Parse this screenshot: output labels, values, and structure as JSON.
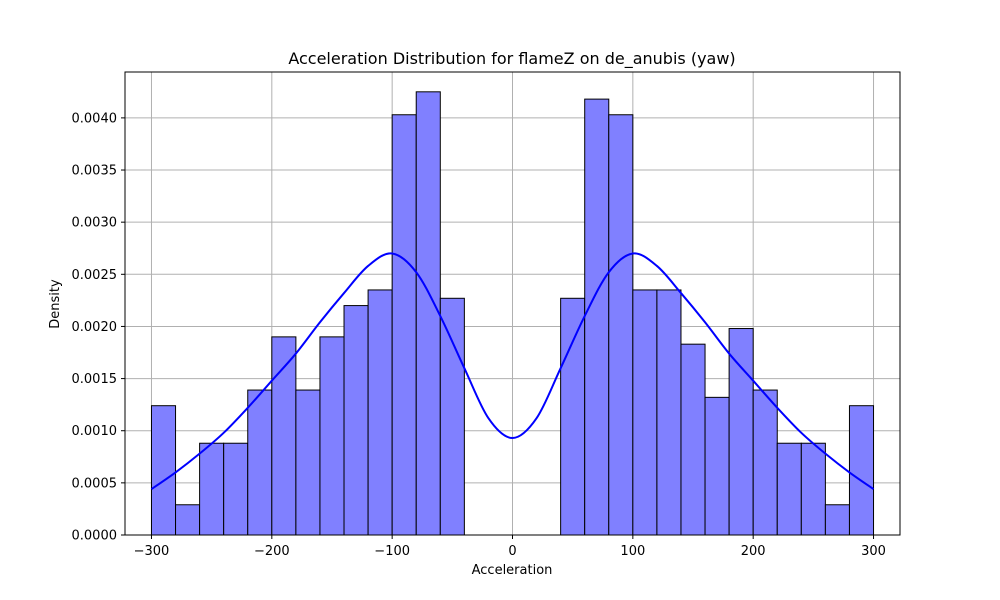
{
  "chart_data": {
    "type": "bar",
    "title": "Acceleration Distribution for flameZ on de_anubis (yaw)",
    "xlabel": "Acceleration",
    "ylabel": "Density",
    "xlim": [
      -322,
      322
    ],
    "ylim": [
      0,
      0.00444
    ],
    "xticks": [
      -300,
      -200,
      -100,
      0,
      100,
      200,
      300
    ],
    "xtick_labels": [
      "−300",
      "−200",
      "−100",
      "0",
      "100",
      "200",
      "300"
    ],
    "yticks": [
      0,
      0.0005,
      0.001,
      0.0015,
      0.002,
      0.0025,
      0.003,
      0.0035,
      0.004
    ],
    "ytick_labels": [
      "0.0000",
      "0.0005",
      "0.0010",
      "0.0015",
      "0.0020",
      "0.0025",
      "0.0030",
      "0.0035",
      "0.0040"
    ],
    "grid": true,
    "bar_color": "#8080ff",
    "kde_color": "#0000ff",
    "bin_edges": [
      -300,
      -280,
      -260,
      -240,
      -220,
      -200,
      -180,
      -160,
      -140,
      -120,
      -100,
      -80,
      -60,
      -40,
      -20,
      0,
      20,
      40,
      60,
      80,
      100,
      120,
      140,
      160,
      180,
      200,
      220,
      240,
      260,
      280,
      300
    ],
    "values": [
      0.00124,
      0.00029,
      0.00088,
      0.00088,
      0.00139,
      0.0019,
      0.00139,
      0.0019,
      0.0022,
      0.00235,
      0.00403,
      0.00425,
      0.00227,
      0,
      0,
      0,
      0,
      0.00227,
      0.00418,
      0.00403,
      0.00235,
      0.00235,
      0.00183,
      0.00132,
      0.00198,
      0.00139,
      0.00088,
      0.00088,
      0.00029,
      0.00124
    ],
    "kde": {
      "x": [
        -300,
        -280,
        -260,
        -240,
        -220,
        -200,
        -180,
        -160,
        -140,
        -120,
        -100,
        -80,
        -60,
        -40,
        -20,
        0,
        20,
        40,
        60,
        80,
        100,
        120,
        140,
        160,
        180,
        200,
        220,
        240,
        260,
        280,
        300
      ],
      "y": [
        0.00044,
        0.0006,
        0.00078,
        0.00098,
        0.00122,
        0.00148,
        0.00174,
        0.00204,
        0.00232,
        0.00258,
        0.0027,
        0.00252,
        0.0021,
        0.0016,
        0.00112,
        0.00093,
        0.00112,
        0.0016,
        0.0021,
        0.00252,
        0.0027,
        0.00258,
        0.00232,
        0.00204,
        0.00174,
        0.00148,
        0.00122,
        0.00098,
        0.00078,
        0.0006,
        0.00044
      ]
    }
  }
}
